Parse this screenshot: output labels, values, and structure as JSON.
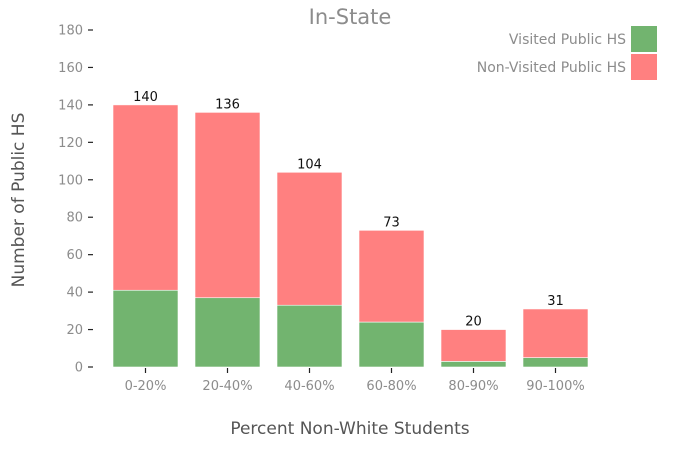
{
  "chart_data": {
    "type": "bar",
    "stacked": true,
    "title": "In-State",
    "xlabel": "Percent Non-White Students",
    "ylabel": "Number of Public HS",
    "categories": [
      "0-20%",
      "20-40%",
      "40-60%",
      "60-80%",
      "80-90%",
      "90-100%"
    ],
    "totals": [
      "140",
      "136",
      "104",
      "73",
      "20",
      "31"
    ],
    "series": [
      {
        "name": "Visited Public HS",
        "color": "#72b46f",
        "values": [
          41,
          37,
          33,
          24,
          3,
          5
        ]
      },
      {
        "name": "Non-Visited Public HS",
        "color": "#ff8080",
        "values": [
          99,
          99,
          71,
          49,
          17,
          26
        ]
      }
    ],
    "ylim": [
      0,
      180
    ],
    "yticks": [
      "0",
      "20",
      "40",
      "60",
      "80",
      "100",
      "120",
      "140",
      "160",
      "180"
    ],
    "grid": false,
    "legend": "top-right"
  }
}
